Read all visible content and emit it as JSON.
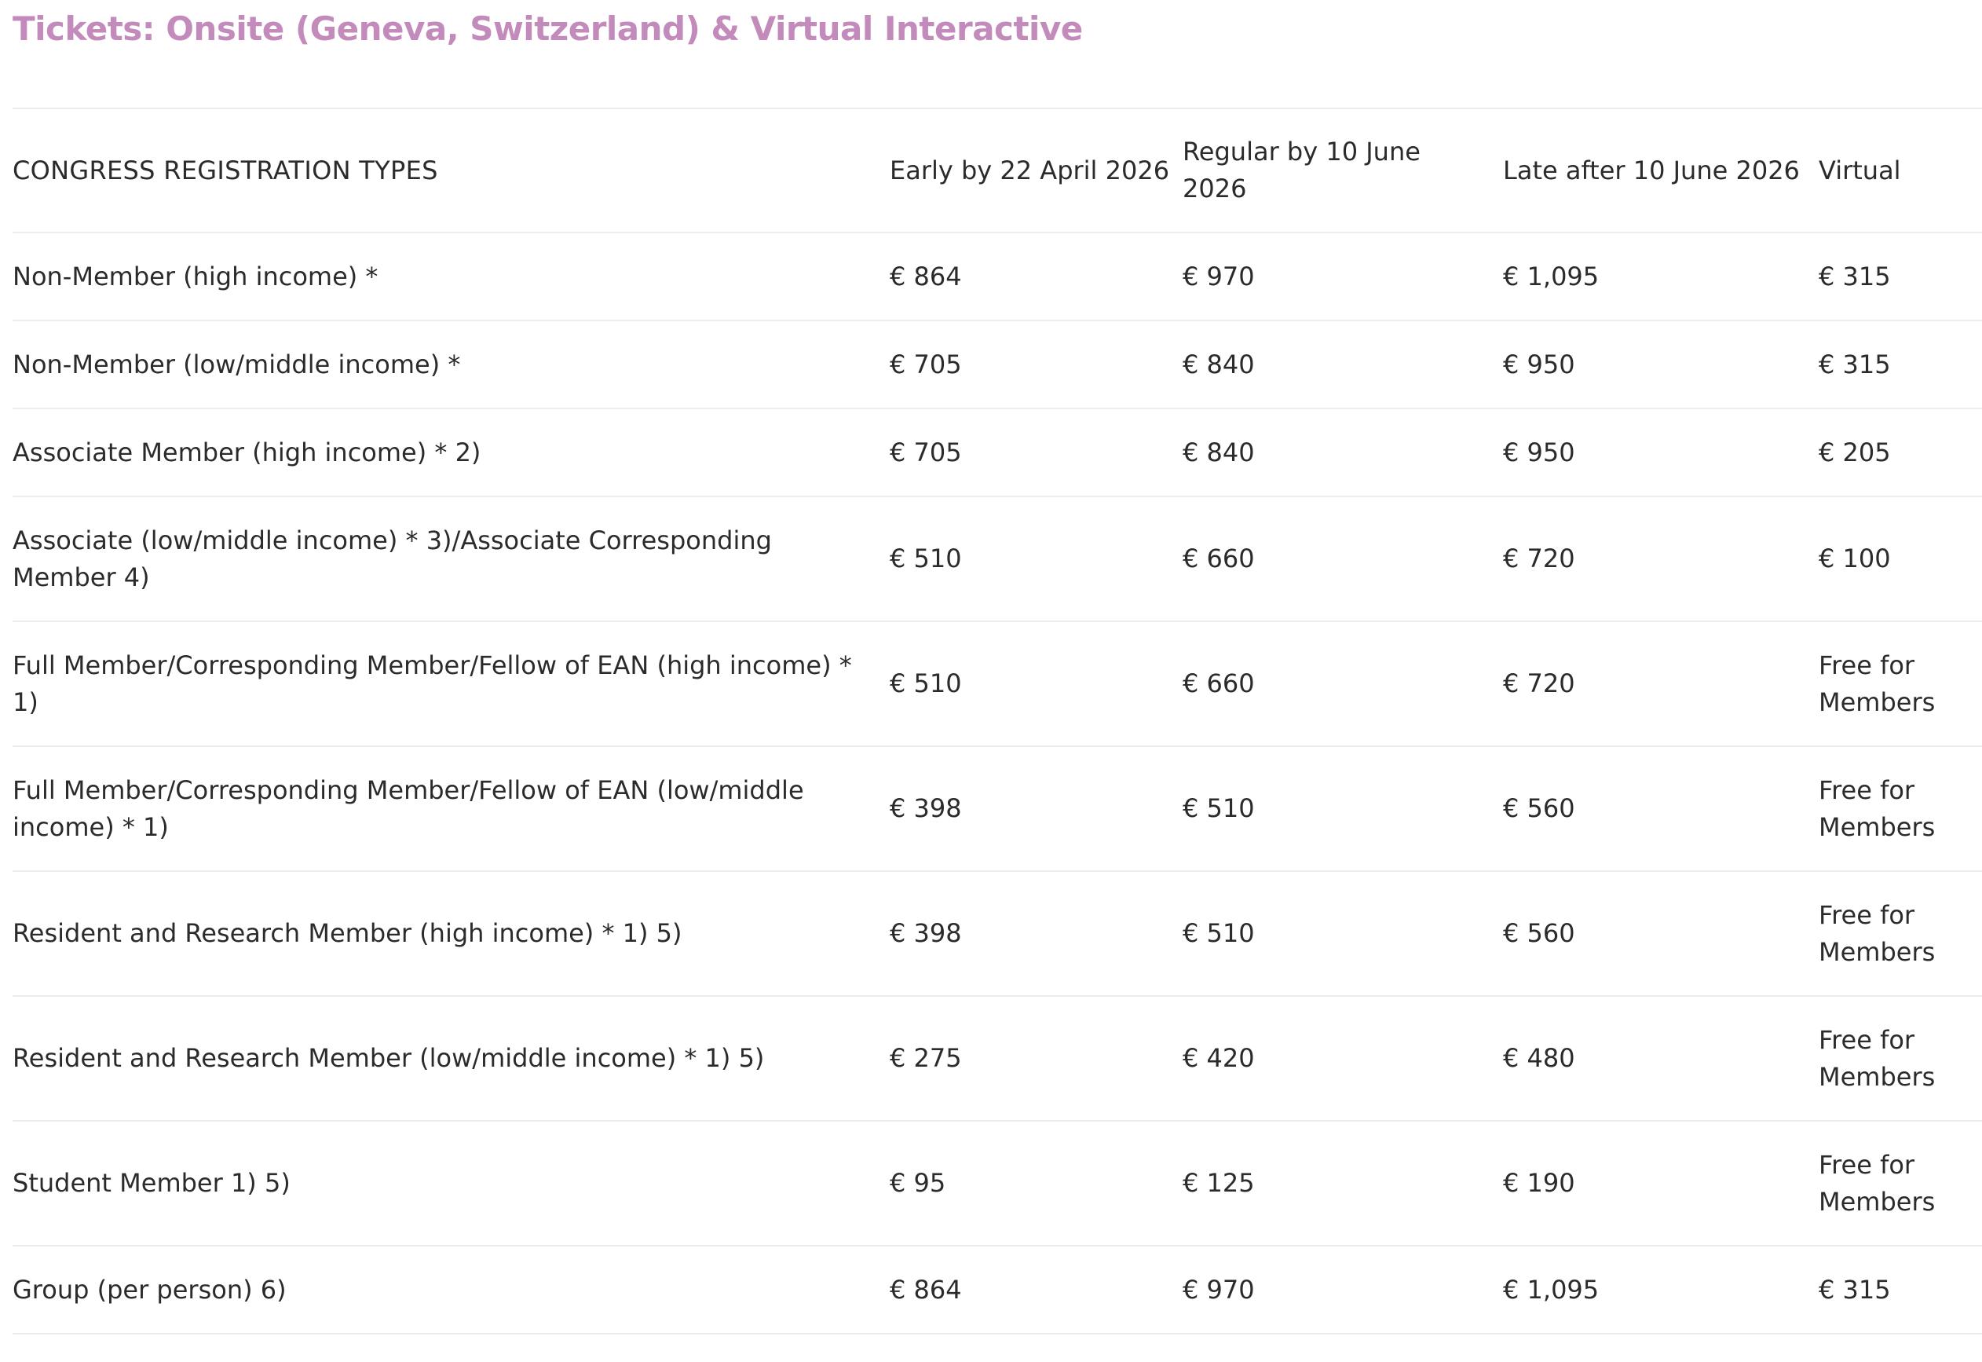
{
  "title": "Tickets: Onsite (Geneva, Switzerland) & Virtual Interactive",
  "table": {
    "headers": [
      "CONGRESS REGISTRATION TYPES",
      "Early by 22 April 2026",
      "Regular by 10 June 2026",
      "Late after 10 June 2026",
      "Virtual"
    ],
    "rows": [
      [
        "Non-Member (high income) *",
        "€ 864",
        "€ 970",
        "€ 1,095",
        "€ 315"
      ],
      [
        "Non-Member (low/middle income) *",
        "€ 705",
        "€ 840",
        "€ 950",
        "€ 315"
      ],
      [
        "Associate Member (high income) * 2)",
        "€ 705",
        "€ 840",
        "€ 950",
        "€ 205"
      ],
      [
        "Associate (low/middle income) * 3)/Associate Corresponding Member 4)",
        "€ 510",
        "€ 660",
        "€ 720",
        "€ 100"
      ],
      [
        "Full Member/Corresponding Member/Fellow of EAN (high income) * 1)",
        "€ 510",
        "€ 660",
        "€ 720",
        "Free for Members"
      ],
      [
        "Full Member/Corresponding Member/Fellow of EAN (low/middle income) * 1)",
        "€ 398",
        "€ 510",
        "€ 560",
        "Free for Members"
      ],
      [
        "Resident and Research Member (high income) * 1) 5)",
        "€ 398",
        "€ 510",
        "€ 560",
        "Free for Members"
      ],
      [
        "Resident and Research Member (low/middle income) * 1) 5)",
        "€ 275",
        "€ 420",
        "€ 480",
        "Free for Members"
      ],
      [
        "Student Member 1) 5)",
        "€ 95",
        "€ 125",
        "€ 190",
        "Free for Members"
      ],
      [
        "Group (per person) 6)",
        "€ 864",
        "€ 970",
        "€ 1,095",
        "€ 315"
      ]
    ]
  },
  "colors": {
    "title": "#c38bbb",
    "text": "#2b2b2b",
    "divider": "#ececec"
  }
}
